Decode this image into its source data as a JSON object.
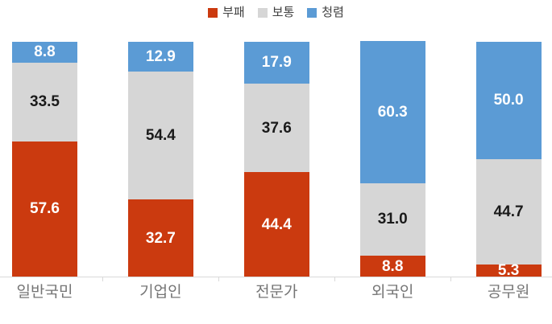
{
  "chart_data": {
    "type": "bar",
    "subtype": "stacked-percent",
    "title": "",
    "categories": [
      "일반국민",
      "기업인",
      "전문가",
      "외국인",
      "공무원"
    ],
    "series": [
      {
        "key": "corrupt",
        "name": "부패",
        "color": "#cb3a0f",
        "label_color": "#ffffff",
        "values": [
          57.6,
          32.7,
          44.4,
          8.8,
          5.3
        ]
      },
      {
        "key": "moderate",
        "name": "보통",
        "color": "#d6d6d6",
        "label_color": "#1a1a1a",
        "values": [
          33.5,
          54.4,
          37.6,
          31.0,
          44.7
        ]
      },
      {
        "key": "clean",
        "name": "청렴",
        "color": "#5b9bd5",
        "label_color": "#ffffff",
        "values": [
          8.8,
          12.9,
          17.9,
          60.3,
          50.0
        ]
      }
    ],
    "value_format": "one-decimal",
    "legend_position": "top-center",
    "legend_labels": [
      "부패",
      "보통",
      "청렴"
    ],
    "ylim": [
      0,
      100
    ],
    "gridlines": false,
    "axis_color": "#d9d9d9",
    "category_label_color": "#757575"
  }
}
